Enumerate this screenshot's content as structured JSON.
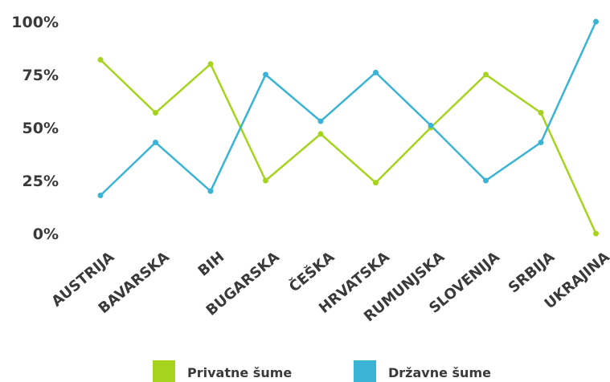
{
  "chart_data": {
    "type": "line",
    "categories": [
      "AUSTRIJA",
      "BAVARSKA",
      "BIH",
      "BUGARSKA",
      "ČEŠKA",
      "HRVATSKA",
      "RUMUNJSKA",
      "SLOVENIJA",
      "SRBIJA",
      "UKRAJINA"
    ],
    "series": [
      {
        "name": "Privatne šume",
        "color": "#a6d41e",
        "values": [
          82,
          57,
          80,
          25,
          47,
          24,
          50,
          75,
          57,
          0
        ]
      },
      {
        "name": "Državne šume",
        "color": "#3ab4d4",
        "values": [
          18,
          43,
          20,
          75,
          53,
          76,
          51,
          25,
          43,
          100
        ]
      }
    ],
    "yticks": [
      {
        "value": 0,
        "label": "0%"
      },
      {
        "value": 25,
        "label": "25%"
      },
      {
        "value": 50,
        "label": "50%"
      },
      {
        "value": 75,
        "label": "75%"
      },
      {
        "value": 100,
        "label": "100%"
      }
    ],
    "ylim": [
      0,
      100
    ],
    "grid": false,
    "legend_position": "bottom"
  }
}
